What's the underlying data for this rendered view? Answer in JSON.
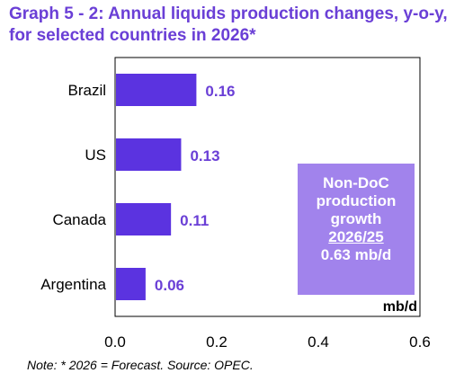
{
  "title": "Graph 5 - 2: Annual liquids production changes, y-o-y, for selected countries in 2026*",
  "note": "Note: * 2026 = Forecast. Source: OPEC.",
  "annotation": {
    "line1": "Non-DoC",
    "line2": "production",
    "line3": "growth",
    "line4": "2026/25",
    "line5": "0.63 mb/d"
  },
  "colors": {
    "bar": "#5b33e0",
    "label": "#6a3fd6",
    "box": "#a183ec"
  },
  "chart_data": {
    "type": "bar",
    "orientation": "horizontal",
    "categories": [
      "Brazil",
      "US",
      "Canada",
      "Argentina"
    ],
    "values": [
      0.16,
      0.13,
      0.11,
      0.06
    ],
    "data_labels": [
      "0.16",
      "0.13",
      "0.11",
      "0.06"
    ],
    "xlim": [
      0,
      0.6
    ],
    "xticks": [
      "0.0",
      "0.2",
      "0.4",
      "0.6"
    ],
    "unit_label": "mb/d",
    "grid": false
  }
}
